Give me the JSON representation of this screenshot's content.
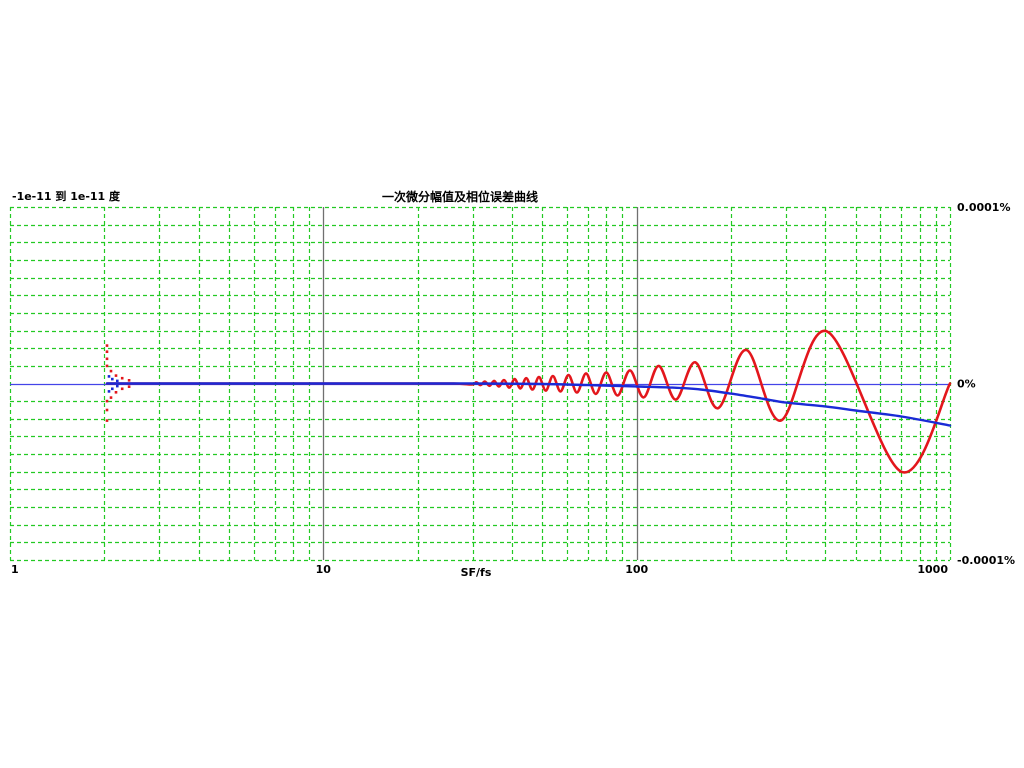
{
  "chart_data": {
    "type": "line",
    "title": "一次微分幅值及相位误差曲线",
    "subtitle": "-1e-11 到 1e-11 度",
    "xlabel": "SF/fs",
    "x_scale": "log",
    "xlim": [
      1,
      1000
    ],
    "x_ticks": [
      1,
      10,
      100,
      1000
    ],
    "x_tick_labels": [
      "1",
      "10",
      "100",
      "1000"
    ],
    "ylim": [
      -0.0001,
      0.0001
    ],
    "y_ticks": [
      0.0001,
      0,
      -0.0001
    ],
    "y_tick_labels": [
      "0.0001%",
      "0%",
      "-0.0001%"
    ],
    "y_tick_side": "right",
    "grid": true,
    "y_grid_step": 1e-05,
    "zero_line": true,
    "colors": {
      "background": "#ffffff",
      "grid": "#23c923",
      "decade_line": "#707070",
      "zero_line": "#4444e8",
      "text": "#000000"
    },
    "series": [
      {
        "color": "#e3161c",
        "points": [
          [
            2.04,
            0
          ],
          [
            3,
            0
          ],
          [
            5,
            0
          ],
          [
            10,
            0
          ],
          [
            18,
            0
          ],
          [
            26,
            0
          ],
          [
            29.85,
            -5e-07
          ],
          [
            30.77,
            7e-07
          ],
          [
            31.75,
            -9e-07
          ],
          [
            32.79,
            1.1e-06
          ],
          [
            33.9,
            -1.3e-06
          ],
          [
            35.09,
            1.5e-06
          ],
          [
            36.36,
            -1.7e-06
          ],
          [
            37.74,
            2e-06
          ],
          [
            39.22,
            -2.3e-06
          ],
          [
            40.82,
            2.5e-06
          ],
          [
            42.55,
            -2.8e-06
          ],
          [
            44.44,
            3e-06
          ],
          [
            46.51,
            -3.4e-06
          ],
          [
            48.78,
            3.6e-06
          ],
          [
            51.28,
            -4e-06
          ],
          [
            54.05,
            4.2e-06
          ],
          [
            57.14,
            -4.5e-06
          ],
          [
            60.61,
            4.8e-06
          ],
          [
            64.52,
            -5.1e-06
          ],
          [
            68.97,
            5.7e-06
          ],
          [
            74.07,
            -5.9e-06
          ],
          [
            80.0,
            6.2e-06
          ],
          [
            86.96,
            -6.8e-06
          ],
          [
            95.24,
            7.4e-06
          ],
          [
            105.3,
            -7.9e-06
          ],
          [
            117.6,
            1e-05
          ],
          [
            133.3,
            -9.1e-06
          ],
          [
            153.8,
            1.2e-05
          ],
          [
            181.8,
            -1.4e-05
          ],
          [
            224,
            1.9e-05
          ],
          [
            288,
            -2.1e-05
          ],
          [
            405,
            2.95e-05
          ],
          [
            700,
            -5e-05
          ],
          [
            1000,
            0
          ]
        ],
        "scatter": [
          [
            2.04,
            2.15e-05
          ],
          [
            2.04,
            1.8e-05
          ],
          [
            2.04,
            1.4e-05
          ],
          [
            2.04,
            1e-05
          ],
          [
            2.04,
            -1e-05
          ],
          [
            2.04,
            -1.5e-05
          ],
          [
            2.04,
            -2.1e-05
          ],
          [
            2.1,
            7e-06
          ],
          [
            2.1,
            -8e-06
          ],
          [
            2.18,
            4.5e-06
          ],
          [
            2.18,
            -5e-06
          ],
          [
            2.28,
            3e-06
          ],
          [
            2.28,
            -3e-06
          ],
          [
            2.4,
            1.8e-06
          ],
          [
            2.4,
            -1.8e-06
          ]
        ]
      },
      {
        "color": "#1a2ad6",
        "points": [
          [
            2.04,
            0
          ],
          [
            5,
            0
          ],
          [
            10,
            0
          ],
          [
            30,
            0
          ],
          [
            50,
            -3e-07
          ],
          [
            70,
            -9e-07
          ],
          [
            100,
            -1.7e-06
          ],
          [
            130,
            -2.3e-06
          ],
          [
            160,
            -3.4e-06
          ],
          [
            200,
            -5.7e-06
          ],
          [
            250,
            -8.5e-06
          ],
          [
            300,
            -1.08e-05
          ],
          [
            400,
            -1.3e-05
          ],
          [
            500,
            -1.53e-05
          ],
          [
            700,
            -1.87e-05
          ],
          [
            1000,
            -2.38e-05
          ]
        ],
        "scatter": [
          [
            2.07,
            4e-06
          ],
          [
            2.07,
            -4.5e-06
          ],
          [
            2.12,
            2.5e-06
          ],
          [
            2.12,
            -3e-06
          ],
          [
            2.2,
            1.5e-06
          ],
          [
            2.2,
            -1.5e-06
          ]
        ]
      }
    ]
  }
}
